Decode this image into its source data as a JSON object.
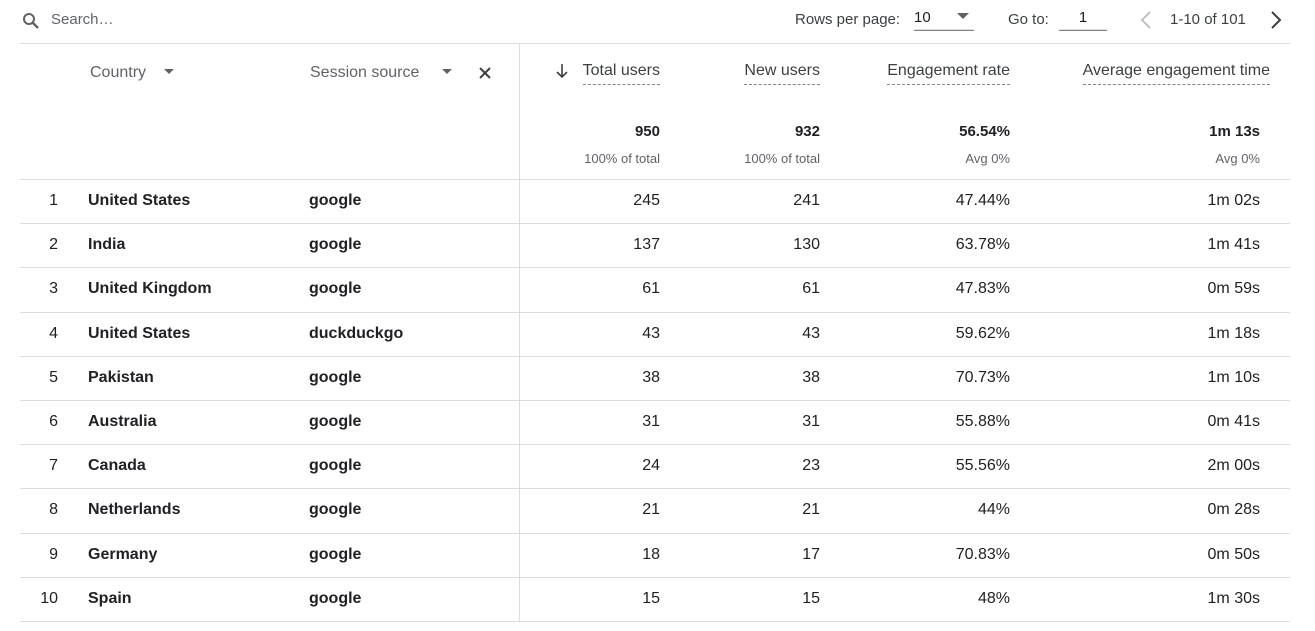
{
  "search": {
    "placeholder": "Search…"
  },
  "pagination": {
    "rows_label": "Rows per page:",
    "rows_value": "10",
    "goto_label": "Go to:",
    "goto_value": "1",
    "range": "1-10 of 101"
  },
  "table": {
    "dimensions": [
      "Country",
      "Session source"
    ],
    "metrics": [
      "Total users",
      "New users",
      "Engagement rate",
      "Average engagement time"
    ],
    "totals": [
      {
        "value": "950",
        "note": "100% of total"
      },
      {
        "value": "932",
        "note": "100% of total"
      },
      {
        "value": "56.54%",
        "note": "Avg 0%"
      },
      {
        "value": "1m 13s",
        "note": "Avg 0%"
      }
    ],
    "rows": [
      [
        "1",
        "United States",
        "google",
        "245",
        "241",
        "47.44%",
        "1m 02s"
      ],
      [
        "2",
        "India",
        "google",
        "137",
        "130",
        "63.78%",
        "1m 41s"
      ],
      [
        "3",
        "United Kingdom",
        "google",
        "61",
        "61",
        "47.83%",
        "0m 59s"
      ],
      [
        "4",
        "United States",
        "duckduckgo",
        "43",
        "43",
        "59.62%",
        "1m 18s"
      ],
      [
        "5",
        "Pakistan",
        "google",
        "38",
        "38",
        "70.73%",
        "1m 10s"
      ],
      [
        "6",
        "Australia",
        "google",
        "31",
        "31",
        "55.88%",
        "0m 41s"
      ],
      [
        "7",
        "Canada",
        "google",
        "24",
        "23",
        "55.56%",
        "2m 00s"
      ],
      [
        "8",
        "Netherlands",
        "google",
        "21",
        "21",
        "44%",
        "0m 28s"
      ],
      [
        "9",
        "Germany",
        "google",
        "18",
        "17",
        "70.83%",
        "0m 50s"
      ],
      [
        "10",
        "Spain",
        "google",
        "15",
        "15",
        "48%",
        "1m 30s"
      ]
    ]
  }
}
